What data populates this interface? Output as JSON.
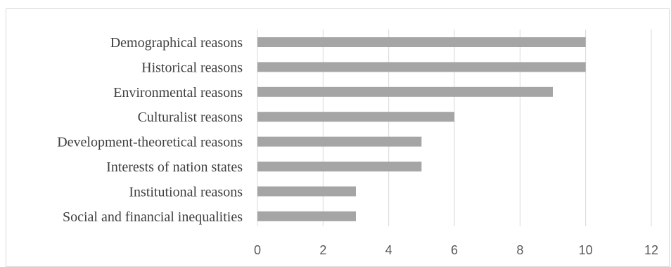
{
  "chart_data": {
    "type": "bar",
    "orientation": "horizontal",
    "title": "",
    "xlabel": "",
    "ylabel": "",
    "categories": [
      "Demographical reasons",
      "Historical reasons",
      "Environmental reasons",
      "Culturalist reasons",
      "Development-theoretical reasons",
      "Interests of nation states",
      "Institutional reasons",
      "Social and financial inequalities"
    ],
    "values": [
      10,
      10,
      9,
      6,
      5,
      5,
      3,
      3
    ],
    "xlim": [
      0,
      12
    ],
    "xticks": [
      0,
      2,
      4,
      6,
      8,
      10,
      12
    ],
    "grid": "vertical",
    "legend": "none",
    "colors": {
      "bar": "#a5a5a5",
      "grid": "#d9d9d9",
      "text": "#404040",
      "tick": "#595959"
    }
  }
}
